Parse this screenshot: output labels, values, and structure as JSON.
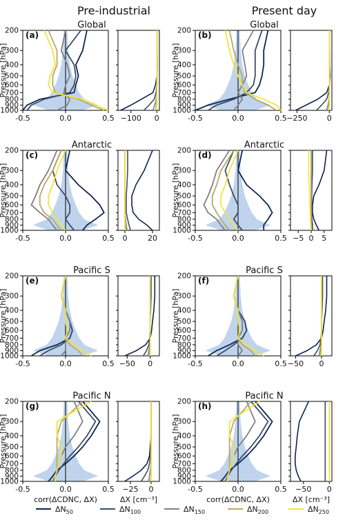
{
  "col_titles": [
    "Pre-industrial",
    "Present day"
  ],
  "ylabel": "Pressure [hPa]",
  "xlabel_corr": "corr(ΔCDNC, ΔX)",
  "xlabel_dx": "ΔX [cm⁻³]",
  "pressure_ticks": [
    200,
    300,
    400,
    500,
    600,
    700,
    800,
    900,
    1000
  ],
  "corr_ticks": [
    "-0.5",
    "0.0",
    "0.5"
  ],
  "legend": [
    {
      "sym": "ΔN",
      "sub": "50",
      "color": "#0d2352"
    },
    {
      "sym": "ΔN",
      "sub": "100",
      "color": "#3b4b66"
    },
    {
      "sym": "ΔN",
      "sub": "150",
      "color": "#7f7f7f"
    },
    {
      "sym": "ΔN",
      "sub": "200",
      "color": "#b8a86a"
    },
    {
      "sym": "ΔN",
      "sub": "250",
      "color": "#f2e43a"
    }
  ],
  "chart_data": [
    {
      "letter": "(a)",
      "title": "Global",
      "dx_ticks": [
        -100,
        0
      ],
      "dx_range": [
        -150,
        10
      ],
      "corr": {
        "N50": [
          0.25,
          0.2,
          0.12,
          0.15,
          0.12,
          0.1,
          -0.3,
          -0.45,
          -0.5
        ],
        "N100": [
          0.18,
          0.0,
          0.1,
          0.12,
          0.1,
          0.05,
          -0.25,
          -0.4,
          -0.45
        ],
        "N150": [
          0.0,
          -0.05,
          0.02,
          0.05,
          0.0,
          -0.02,
          0.05,
          0.02,
          -0.1
        ],
        "N200": [
          -0.2,
          -0.1,
          -0.1,
          -0.15,
          -0.15,
          -0.12,
          0.15,
          0.3,
          0.45
        ],
        "N250": [
          -0.25,
          -0.15,
          -0.12,
          -0.18,
          -0.2,
          -0.15,
          0.2,
          0.35,
          0.5
        ]
      },
      "dx": {
        "N50": [
          0,
          0,
          1,
          0,
          -5,
          -15,
          -60,
          -100,
          -140
        ],
        "N100": [
          0,
          0,
          0,
          0,
          0,
          -3,
          -10,
          -30,
          -50
        ],
        "N150": [
          0,
          0,
          0,
          0,
          0,
          0,
          -2,
          -8,
          -15
        ],
        "N200": [
          0,
          0,
          0,
          0,
          0,
          0,
          0,
          -2,
          -4
        ],
        "N250": [
          0,
          0,
          0,
          0,
          0,
          0,
          0,
          0,
          -1
        ]
      }
    },
    {
      "letter": "(b)",
      "title": "Global",
      "dx_ticks": [
        -250,
        0
      ],
      "dx_range": [
        -300,
        20
      ],
      "corr": {
        "N50": [
          0.35,
          0.3,
          0.3,
          0.28,
          0.25,
          0.2,
          -0.1,
          -0.35,
          -0.5
        ],
        "N100": [
          0.28,
          0.2,
          0.2,
          0.2,
          0.18,
          0.1,
          -0.05,
          -0.25,
          -0.35
        ],
        "N150": [
          0.18,
          0.05,
          0.08,
          0.1,
          0.05,
          0.0,
          0.05,
          0.0,
          -0.05
        ],
        "N200": [
          -0.1,
          -0.05,
          0.0,
          0.05,
          0.05,
          0.08,
          0.2,
          0.35,
          0.45
        ],
        "N250": [
          -0.15,
          -0.1,
          -0.05,
          0.0,
          0.05,
          0.1,
          0.3,
          0.45,
          0.5
        ]
      },
      "dx": {
        "N50": [
          0,
          0,
          2,
          5,
          0,
          -20,
          -90,
          -180,
          -260
        ],
        "N100": [
          0,
          0,
          0,
          0,
          0,
          -5,
          -20,
          -60,
          -100
        ],
        "N150": [
          0,
          0,
          0,
          0,
          0,
          0,
          -2,
          -10,
          -20
        ],
        "N200": [
          0,
          0,
          0,
          0,
          0,
          0,
          0,
          -2,
          -5
        ],
        "N250": [
          0,
          0,
          0,
          0,
          0,
          0,
          0,
          0,
          -2
        ]
      }
    },
    {
      "letter": "(c)",
      "title": "Antarctic",
      "dx_ticks": [
        0,
        20
      ],
      "dx_range": [
        -5,
        25
      ],
      "corr": {
        "N50": [
          0.05,
          0.0,
          0.15,
          0.3,
          0.4,
          0.45,
          0.35,
          0.25,
          0.2
        ],
        "N100": [
          -0.05,
          -0.15,
          -0.1,
          0.0,
          0.05,
          0.05,
          0.0,
          0.05,
          0.1
        ],
        "N150": [
          -0.1,
          -0.2,
          -0.3,
          -0.35,
          -0.4,
          -0.3,
          -0.2,
          -0.15,
          -0.1
        ],
        "N200": [
          -0.05,
          -0.15,
          -0.25,
          -0.3,
          -0.3,
          -0.25,
          -0.15,
          -0.1,
          -0.05
        ],
        "N250": [
          0.0,
          -0.1,
          -0.15,
          -0.2,
          -0.2,
          -0.15,
          -0.1,
          -0.05,
          0.0
        ]
      },
      "dx": {
        "N50": [
          20,
          14,
          8,
          5,
          5,
          6,
          10,
          16,
          20
        ],
        "N100": [
          2,
          2,
          1.5,
          1,
          1,
          1,
          2,
          3,
          4
        ],
        "N150": [
          0,
          0,
          0,
          0,
          0,
          0,
          0.5,
          1,
          1.5
        ],
        "N200": [
          0,
          0,
          0,
          0,
          0,
          0,
          0,
          0.5,
          0.5
        ],
        "N250": [
          0,
          0,
          0,
          0,
          0,
          0,
          0,
          0,
          0
        ]
      }
    },
    {
      "letter": "(d)",
      "title": "Antarctic",
      "dx_ticks": [
        -5,
        0,
        5
      ],
      "dx_range": [
        -8,
        8
      ],
      "corr": {
        "N50": [
          0.05,
          0.0,
          0.1,
          0.25,
          0.35,
          0.4,
          0.35,
          0.3,
          0.3
        ],
        "N100": [
          -0.05,
          -0.15,
          -0.1,
          -0.05,
          0.0,
          0.0,
          -0.05,
          0.0,
          0.05
        ],
        "N150": [
          -0.1,
          -0.25,
          -0.3,
          -0.35,
          -0.4,
          -0.35,
          -0.25,
          -0.2,
          -0.15
        ],
        "N200": [
          -0.05,
          -0.2,
          -0.25,
          -0.3,
          -0.3,
          -0.25,
          -0.2,
          -0.15,
          -0.1
        ],
        "N250": [
          0.0,
          -0.1,
          -0.15,
          -0.2,
          -0.2,
          -0.15,
          -0.1,
          -0.05,
          0.0
        ]
      },
      "dx": {
        "N50": [
          6,
          5,
          3,
          1,
          0.5,
          0.5,
          1,
          2,
          3
        ],
        "N100": [
          0.5,
          0.5,
          0.3,
          0.2,
          0.2,
          0.2,
          0.3,
          0.5,
          0.5
        ],
        "N150": [
          0,
          0,
          0,
          0,
          0,
          0,
          0,
          0,
          0
        ],
        "N200": [
          0,
          0,
          0,
          0,
          0,
          0,
          0,
          0,
          0
        ],
        "N250": [
          -1,
          -1,
          -0.8,
          -0.6,
          -0.5,
          -0.4,
          -0.3,
          -0.2,
          0
        ]
      }
    },
    {
      "letter": "(e)",
      "title": "Pacific S",
      "dx_ticks": [
        -50,
        0
      ],
      "dx_range": [
        -70,
        20
      ],
      "corr": {
        "N50": [
          0.0,
          -0.05,
          0.0,
          0.05,
          0.08,
          0.05,
          -0.1,
          -0.3,
          -0.4
        ],
        "N100": [
          0.0,
          -0.05,
          0.0,
          0.05,
          0.08,
          0.05,
          -0.05,
          -0.2,
          -0.3
        ],
        "N150": [
          0.0,
          -0.05,
          0.0,
          0.05,
          0.05,
          0.0,
          0.0,
          0.0,
          -0.05
        ],
        "N200": [
          0.0,
          -0.05,
          0.0,
          0.0,
          0.02,
          0.0,
          0.05,
          0.15,
          0.2
        ],
        "N250": [
          0.0,
          -0.05,
          0.0,
          0.0,
          0.02,
          0.0,
          0.1,
          0.2,
          0.3
        ]
      },
      "dx": {
        "N50": [
          10,
          10,
          8,
          5,
          3,
          0,
          -10,
          -30,
          -55
        ],
        "N100": [
          2,
          2,
          1,
          0,
          0,
          -1,
          -3,
          -8,
          -15
        ],
        "N150": [
          0,
          0,
          0,
          0,
          0,
          0,
          -1,
          -3,
          -5
        ],
        "N200": [
          0,
          0,
          0,
          0,
          0,
          0,
          0,
          -1,
          -2
        ],
        "N250": [
          0,
          0,
          0,
          0,
          0,
          0,
          0,
          0,
          0
        ]
      }
    },
    {
      "letter": "(f)",
      "title": "Pacific S",
      "dx_ticks": [
        -50,
        0
      ],
      "dx_range": [
        -60,
        20
      ],
      "corr": {
        "N50": [
          0.0,
          -0.05,
          0.0,
          0.08,
          0.1,
          0.05,
          -0.1,
          -0.25,
          -0.35
        ],
        "N100": [
          0.0,
          -0.05,
          0.0,
          0.08,
          0.1,
          0.05,
          -0.05,
          -0.15,
          -0.25
        ],
        "N150": [
          0.0,
          -0.05,
          0.0,
          0.05,
          0.05,
          0.0,
          0.0,
          0.05,
          0.0
        ],
        "N200": [
          0.0,
          -0.05,
          0.0,
          0.0,
          0.02,
          0.0,
          0.05,
          0.15,
          0.2
        ],
        "N250": [
          0.0,
          -0.05,
          0.0,
          0.0,
          0.02,
          0.0,
          0.1,
          0.2,
          0.3
        ]
      },
      "dx": {
        "N50": [
          10,
          10,
          8,
          5,
          3,
          0,
          -10,
          -28,
          -50
        ],
        "N100": [
          2,
          2,
          1,
          0,
          0,
          -1,
          -3,
          -8,
          -15
        ],
        "N150": [
          0,
          0,
          0,
          0,
          0,
          0,
          -1,
          -3,
          -5
        ],
        "N200": [
          0,
          0,
          0,
          0,
          0,
          0,
          0,
          -1,
          -2
        ],
        "N250": [
          0,
          0,
          0,
          0,
          0,
          0,
          0,
          0,
          0
        ]
      }
    },
    {
      "letter": "(g)",
      "title": "Pacific N",
      "dx_ticks": [
        -25,
        0
      ],
      "dx_range": [
        -40,
        10
      ],
      "corr": {
        "N50": [
          0.2,
          0.4,
          0.3,
          0.2,
          0.1,
          0.0,
          -0.1,
          -0.15,
          -0.2
        ],
        "N100": [
          0.15,
          0.35,
          0.25,
          0.15,
          0.05,
          -0.02,
          -0.08,
          -0.12,
          -0.15
        ],
        "N150": [
          0.1,
          0.2,
          0.1,
          0.0,
          -0.05,
          -0.08,
          -0.1,
          -0.12,
          -0.15
        ],
        "N200": [
          0.2,
          -0.05,
          -0.1,
          -0.1,
          -0.1,
          -0.1,
          -0.1,
          -0.12,
          -0.12
        ],
        "N250": [
          0.3,
          -0.1,
          -0.1,
          -0.05,
          -0.05,
          -0.08,
          -0.1,
          -0.12,
          -0.12
        ]
      },
      "dx": {
        "N50": [
          0,
          0,
          0,
          -1,
          -2,
          -5,
          -12,
          -22,
          -32
        ],
        "N100": [
          0,
          0,
          0,
          0,
          -1,
          -2,
          -4,
          -8,
          -12
        ],
        "N150": [
          0,
          0,
          0,
          0,
          0,
          0,
          -1,
          -2,
          -3
        ],
        "N200": [
          0,
          0,
          0,
          0,
          0,
          0,
          0,
          0,
          -1
        ],
        "N250": [
          0,
          0,
          0,
          0,
          0,
          0,
          0,
          0,
          0
        ]
      }
    },
    {
      "letter": "(h)",
      "title": "Pacific N",
      "dx_ticks": [
        -50,
        0
      ],
      "dx_range": [
        -75,
        5
      ],
      "corr": {
        "N50": [
          0.2,
          0.4,
          0.3,
          0.2,
          0.1,
          0.0,
          -0.1,
          -0.15,
          -0.2
        ],
        "N100": [
          0.15,
          0.35,
          0.25,
          0.15,
          0.05,
          -0.02,
          -0.08,
          -0.12,
          -0.15
        ],
        "N150": [
          0.1,
          0.2,
          0.1,
          0.0,
          -0.05,
          -0.08,
          -0.1,
          -0.12,
          -0.15
        ],
        "N200": [
          0.15,
          -0.05,
          -0.1,
          -0.1,
          -0.1,
          -0.1,
          -0.1,
          -0.12,
          -0.12
        ],
        "N250": [
          0.25,
          -0.1,
          -0.1,
          -0.05,
          -0.05,
          -0.08,
          -0.1,
          -0.12,
          -0.12
        ]
      },
      "dx": {
        "N50": [
          -40,
          -58,
          -62,
          -64,
          -66,
          -66,
          -64,
          -60,
          -55
        ],
        "N100": [
          -8,
          -8,
          -8,
          -8,
          -8,
          -8,
          -8,
          -8,
          -8
        ],
        "N150": [
          0,
          0,
          0,
          0,
          0,
          0,
          0,
          0,
          0
        ],
        "N200": [
          0,
          0,
          0,
          0,
          0,
          0,
          0,
          0,
          0
        ],
        "N250": [
          0,
          0,
          0,
          0,
          0,
          0,
          0,
          0,
          0
        ]
      }
    }
  ]
}
